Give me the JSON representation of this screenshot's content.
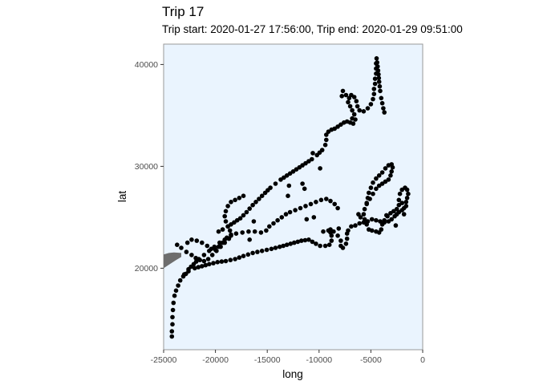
{
  "chart_data": {
    "type": "scatter",
    "title": "Trip 17",
    "subtitle": "Trip start: 2020-01-27 17:56:00, Trip end: 2020-01-29 09:51:00",
    "xlabel": "long",
    "ylabel": "lat",
    "xlim": [
      -25000,
      0
    ],
    "ylim": [
      12000,
      42000
    ],
    "x_ticks": [
      -25000,
      -20000,
      -15000,
      -10000,
      -5000,
      0
    ],
    "y_ticks": [
      20000,
      30000,
      40000
    ],
    "x_tick_labels": [
      "-25000",
      "-20000",
      "-15000",
      "-10000",
      "-5000",
      "0"
    ],
    "y_tick_labels": [
      "20000",
      "30000",
      "40000"
    ],
    "grid": false,
    "legend": "none",
    "colors": {
      "panel_background": "#EAF4FE",
      "panel_border": "#9A9A9A",
      "points": "#000000",
      "land_shape": "#6E6E6E"
    },
    "land_shape": [
      [
        -25000,
        20000
      ],
      [
        -24400,
        20400
      ],
      [
        -23800,
        20800
      ],
      [
        -23300,
        21100
      ],
      [
        -23300,
        21500
      ],
      [
        -24000,
        21550
      ],
      [
        -24500,
        21500
      ],
      [
        -25000,
        21350
      ]
    ],
    "paths": [
      [
        [
          -24200,
          13300
        ],
        [
          -24200,
          13800
        ],
        [
          -24150,
          14500
        ],
        [
          -24150,
          15200
        ],
        [
          -24100,
          15900
        ],
        [
          -24050,
          16600
        ],
        [
          -23950,
          17300
        ],
        [
          -23800,
          17800
        ],
        [
          -23600,
          18300
        ],
        [
          -23400,
          18800
        ],
        [
          -23100,
          19200
        ],
        [
          -22600,
          19700
        ],
        [
          -22000,
          20000
        ],
        [
          -21300,
          20200
        ],
        [
          -20600,
          20400
        ],
        [
          -19800,
          20600
        ],
        [
          -19000,
          20700
        ],
        [
          -18100,
          20900
        ],
        [
          -17300,
          21200
        ],
        [
          -16400,
          21500
        ],
        [
          -15500,
          21700
        ],
        [
          -14600,
          21900
        ],
        [
          -13800,
          22100
        ],
        [
          -13100,
          22300
        ],
        [
          -12400,
          22500
        ],
        [
          -11700,
          22700
        ],
        [
          -11000,
          22800
        ],
        [
          -10300,
          22400
        ],
        [
          -9900,
          22200
        ],
        [
          -9400,
          22200
        ],
        [
          -9000,
          22300
        ],
        [
          -8800,
          22700
        ],
        [
          -8800,
          23200
        ],
        [
          -8900,
          23500
        ],
        [
          -9100,
          23700
        ],
        [
          -8900,
          23800
        ],
        [
          -8600,
          23600
        ],
        [
          -8200,
          23200
        ],
        [
          -7900,
          22700
        ],
        [
          -7900,
          22200
        ],
        [
          -7700,
          22000
        ],
        [
          -7400,
          22400
        ],
        [
          -7300,
          22900
        ],
        [
          -7300,
          23400
        ],
        [
          -7200,
          23700
        ],
        [
          -6900,
          24100
        ],
        [
          -6500,
          24200
        ],
        [
          -6100,
          24400
        ],
        [
          -5700,
          24500
        ],
        [
          -5300,
          24600
        ],
        [
          -4900,
          24800
        ],
        [
          -4500,
          24700
        ],
        [
          -4100,
          24600
        ],
        [
          -3700,
          24500
        ],
        [
          -3300,
          24600
        ],
        [
          -3000,
          24800
        ],
        [
          -2700,
          25100
        ],
        [
          -2500,
          25300
        ],
        [
          -2300,
          25500
        ],
        [
          -2000,
          25700
        ],
        [
          -1800,
          25900
        ],
        [
          -1600,
          26100
        ],
        [
          -1600,
          26500
        ],
        [
          -1500,
          26900
        ],
        [
          -1400,
          27300
        ],
        [
          -1500,
          27700
        ],
        [
          -1700,
          27900
        ],
        [
          -2000,
          27700
        ],
        [
          -2200,
          27300
        ],
        [
          -2300,
          26700
        ],
        [
          -2300,
          26200
        ],
        [
          -2500,
          25800
        ],
        [
          -2800,
          25600
        ],
        [
          -3100,
          25400
        ],
        [
          -3400,
          25100
        ],
        [
          -3700,
          24700
        ],
        [
          -3900,
          24300
        ],
        [
          -4000,
          23800
        ],
        [
          -4200,
          23500
        ],
        [
          -4500,
          23600
        ],
        [
          -4900,
          23700
        ],
        [
          -5200,
          23800
        ],
        [
          -5400,
          24300
        ],
        [
          -5600,
          24800
        ],
        [
          -5700,
          25300
        ],
        [
          -5600,
          25800
        ],
        [
          -5400,
          26300
        ],
        [
          -5100,
          26800
        ],
        [
          -4800,
          27300
        ],
        [
          -4500,
          27800
        ],
        [
          -4200,
          28100
        ],
        [
          -3900,
          28300
        ],
        [
          -3600,
          28500
        ],
        [
          -3300,
          28700
        ],
        [
          -3100,
          29100
        ],
        [
          -3000,
          29500
        ],
        [
          -2900,
          29900
        ],
        [
          -3000,
          30200
        ],
        [
          -3300,
          30100
        ],
        [
          -3600,
          29800
        ],
        [
          -3900,
          29400
        ],
        [
          -4200,
          29100
        ],
        [
          -4500,
          28800
        ],
        [
          -4800,
          28400
        ],
        [
          -5000,
          27900
        ],
        [
          -5200,
          27400
        ],
        [
          -5300,
          26900
        ],
        [
          -5400,
          26400
        ]
      ],
      [
        [
          -23700,
          22300
        ],
        [
          -23300,
          22000
        ],
        [
          -22800,
          21600
        ],
        [
          -22300,
          21300
        ],
        [
          -21900,
          21000
        ],
        [
          -21500,
          20800
        ],
        [
          -21100,
          20700
        ],
        [
          -20700,
          20900
        ],
        [
          -20300,
          21300
        ],
        [
          -19900,
          21700
        ],
        [
          -19500,
          22100
        ],
        [
          -19100,
          22500
        ],
        [
          -18700,
          22900
        ],
        [
          -18500,
          23300
        ],
        [
          -18600,
          23700
        ],
        [
          -18800,
          24100
        ],
        [
          -19000,
          24600
        ],
        [
          -19100,
          25100
        ],
        [
          -19000,
          25600
        ],
        [
          -18800,
          26100
        ],
        [
          -18500,
          26500
        ],
        [
          -18100,
          26700
        ],
        [
          -17700,
          26900
        ],
        [
          -17300,
          27100
        ]
      ],
      [
        [
          -22700,
          22500
        ],
        [
          -22300,
          22800
        ],
        [
          -21800,
          22700
        ],
        [
          -21300,
          22500
        ],
        [
          -20800,
          22200
        ],
        [
          -20400,
          21900
        ],
        [
          -20000,
          21800
        ],
        [
          -19700,
          22100
        ],
        [
          -19300,
          22500
        ],
        [
          -18900,
          23000
        ],
        [
          -18500,
          23200
        ],
        [
          -18000,
          23400
        ],
        [
          -17400,
          23500
        ],
        [
          -16800,
          23600
        ],
        [
          -16200,
          23600
        ],
        [
          -15600,
          23500
        ],
        [
          -15100,
          23700
        ],
        [
          -14800,
          24100
        ],
        [
          -14400,
          24400
        ],
        [
          -14000,
          24700
        ],
        [
          -13600,
          25000
        ],
        [
          -13200,
          25300
        ],
        [
          -12800,
          25500
        ],
        [
          -12300,
          25700
        ],
        [
          -11800,
          25900
        ],
        [
          -11300,
          26100
        ],
        [
          -10800,
          26300
        ],
        [
          -10300,
          26500
        ],
        [
          -9800,
          26700
        ],
        [
          -9300,
          26800
        ],
        [
          -8900,
          26600
        ],
        [
          -8500,
          26300
        ],
        [
          -8200,
          25900
        ]
      ],
      [
        [
          -19700,
          23600
        ],
        [
          -19300,
          23800
        ],
        [
          -18800,
          24100
        ],
        [
          -18200,
          24500
        ],
        [
          -17600,
          24900
        ],
        [
          -17000,
          25500
        ],
        [
          -16400,
          26200
        ],
        [
          -15800,
          26800
        ],
        [
          -15200,
          27400
        ],
        [
          -14700,
          27900
        ],
        [
          -14200,
          28300
        ],
        [
          -13700,
          28700
        ],
        [
          -13100,
          29100
        ],
        [
          -12500,
          29500
        ],
        [
          -11900,
          29900
        ],
        [
          -11300,
          30300
        ],
        [
          -10700,
          30700
        ],
        [
          -10200,
          31100
        ],
        [
          -9700,
          31600
        ],
        [
          -9400,
          32100
        ],
        [
          -9300,
          32600
        ],
        [
          -9300,
          33100
        ],
        [
          -9100,
          33400
        ],
        [
          -8800,
          33600
        ],
        [
          -8500,
          33700
        ],
        [
          -8200,
          33900
        ],
        [
          -7900,
          34100
        ],
        [
          -7600,
          34300
        ],
        [
          -7300,
          34400
        ],
        [
          -7000,
          34300
        ],
        [
          -6700,
          34200
        ],
        [
          -6500,
          34600
        ],
        [
          -6600,
          35100
        ],
        [
          -6800,
          35500
        ],
        [
          -7000,
          35900
        ],
        [
          -7200,
          36300
        ],
        [
          -7100,
          36700
        ],
        [
          -6900,
          37000
        ],
        [
          -6600,
          36800
        ],
        [
          -6400,
          36400
        ],
        [
          -6300,
          35900
        ],
        [
          -6100,
          35500
        ],
        [
          -5700,
          35400
        ],
        [
          -5300,
          35700
        ],
        [
          -5000,
          36100
        ],
        [
          -4800,
          36600
        ],
        [
          -4700,
          37100
        ],
        [
          -4700,
          37600
        ],
        [
          -4600,
          38100
        ],
        [
          -4600,
          38600
        ],
        [
          -4500,
          39100
        ],
        [
          -4500,
          39600
        ],
        [
          -4500,
          40100
        ],
        [
          -4450,
          40600
        ],
        [
          -4300,
          39400
        ],
        [
          -4200,
          38300
        ],
        [
          -4100,
          37400
        ],
        [
          -4000,
          36700
        ],
        [
          -3900,
          36200
        ],
        [
          -3800,
          35700
        ],
        [
          -3700,
          35300
        ]
      ],
      [
        [
          -23000,
          19400
        ],
        [
          -22600,
          19900
        ],
        [
          -22100,
          20400
        ],
        [
          -21600,
          20900
        ],
        [
          -21100,
          21300
        ],
        [
          -20600,
          21700
        ],
        [
          -20100,
          22100
        ],
        [
          -19600,
          22500
        ],
        [
          -19100,
          22800
        ]
      ],
      [
        [
          -11200,
          24800
        ],
        [
          -10500,
          25000
        ],
        [
          -9600,
          23600
        ],
        [
          -8100,
          23900
        ],
        [
          -6200,
          25300
        ],
        [
          -6000,
          25000
        ],
        [
          -3500,
          25200
        ],
        [
          -2000,
          26400
        ],
        [
          -1800,
          25300
        ],
        [
          -2600,
          24200
        ],
        [
          -7800,
          36900
        ],
        [
          -7700,
          37400
        ],
        [
          -7400,
          37000
        ],
        [
          -6800,
          34700
        ],
        [
          -11400,
          27800
        ],
        [
          -11600,
          28300
        ],
        [
          -12900,
          28100
        ],
        [
          -9900,
          29800
        ],
        [
          -10600,
          31300
        ],
        [
          -16300,
          24600
        ],
        [
          -16700,
          22800
        ],
        [
          -13000,
          27100
        ]
      ]
    ]
  }
}
